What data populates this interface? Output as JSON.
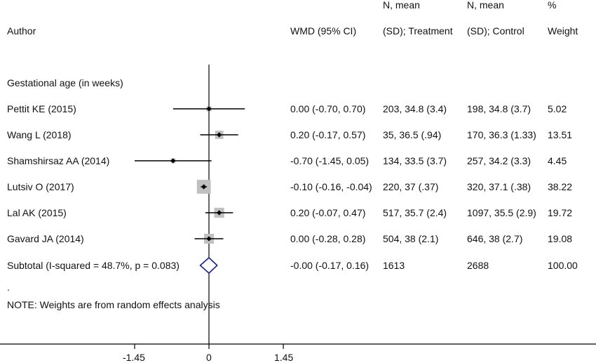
{
  "header": {
    "author": "Author",
    "wmd": "WMD (95% CI)",
    "treat_line1": "N, mean",
    "treat_line2": "(SD); Treatment",
    "ctrl_line1": "N, mean",
    "ctrl_line2": "(SD); Control",
    "weight_line1": "%",
    "weight_line2": "Weight"
  },
  "section_label": "Gestational age (in weeks)",
  "dot_marker": ".",
  "note": "NOTE: Weights are from random effects analysis",
  "chart_data": {
    "type": "forest",
    "x_ticks": [
      -1.45,
      0,
      1.45
    ],
    "x_tick_labels": [
      "-1.45",
      "0",
      "1.45"
    ],
    "xlim": [
      -1.45,
      1.45
    ],
    "studies": [
      {
        "author": "Pettit KE (2015)",
        "wmd": 0.0,
        "lo": -0.7,
        "hi": 0.7,
        "ci_text": "0.00 (-0.70, 0.70)",
        "treatment": "203, 34.8 (3.4)",
        "control": "198, 34.8 (3.7)",
        "weight": 5.02,
        "weight_text": "5.02"
      },
      {
        "author": "Wang L (2018)",
        "wmd": 0.2,
        "lo": -0.17,
        "hi": 0.57,
        "ci_text": "0.20 (-0.17, 0.57)",
        "treatment": "35, 36.5 (.94)",
        "control": "170, 36.3 (1.33)",
        "weight": 13.51,
        "weight_text": "13.51"
      },
      {
        "author": "Shamshirsaz AA (2014)",
        "wmd": -0.7,
        "lo": -1.45,
        "hi": 0.05,
        "ci_text": "-0.70 (-1.45, 0.05)",
        "treatment": "134, 33.5 (3.7)",
        "control": "257, 34.2 (3.3)",
        "weight": 4.45,
        "weight_text": "4.45"
      },
      {
        "author": "Lutsiv O (2017)",
        "wmd": -0.1,
        "lo": -0.16,
        "hi": -0.04,
        "ci_text": "-0.10 (-0.16, -0.04)",
        "treatment": "220, 37 (.37)",
        "control": "320, 37.1 (.38)",
        "weight": 38.22,
        "weight_text": "38.22"
      },
      {
        "author": "Lal AK (2015)",
        "wmd": 0.2,
        "lo": -0.07,
        "hi": 0.47,
        "ci_text": "0.20 (-0.07, 0.47)",
        "treatment": "517, 35.7 (2.4)",
        "control": "1097, 35.5 (2.9)",
        "weight": 19.72,
        "weight_text": "19.72"
      },
      {
        "author": "Gavard JA (2014)",
        "wmd": 0.0,
        "lo": -0.28,
        "hi": 0.28,
        "ci_text": "0.00 (-0.28, 0.28)",
        "treatment": "504, 38 (2.1)",
        "control": "646, 38 (2.7)",
        "weight": 19.08,
        "weight_text": "19.08"
      }
    ],
    "subtotal": {
      "label": "Subtotal  (I-squared = 48.7%, p = 0.083)",
      "wmd": 0.0,
      "lo": -0.17,
      "hi": 0.16,
      "ci_text": "-0.00 (-0.17, 0.16)",
      "treatment": "1613",
      "control": "2688",
      "weight_text": "100.00"
    },
    "colors": {
      "ci_line": "#000000",
      "weight_box": "#c0c0c0",
      "point": "#000000",
      "diamond": "#1a237e"
    }
  }
}
